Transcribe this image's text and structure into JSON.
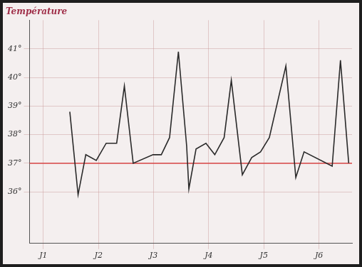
{
  "chart_data": {
    "type": "line",
    "title": "Température",
    "x": [
      1.48,
      1.63,
      1.77,
      1.96,
      2.14,
      2.33,
      2.47,
      2.63,
      2.99,
      3.14,
      3.29,
      3.45,
      3.6,
      3.64,
      3.77,
      3.95,
      4.11,
      4.28,
      4.41,
      4.61,
      4.78,
      4.94,
      5.1,
      5.4,
      5.58,
      5.73,
      6.24,
      6.39,
      6.54
    ],
    "values": [
      38.8,
      35.9,
      37.3,
      37.1,
      37.7,
      37.7,
      39.7,
      37.0,
      37.3,
      37.3,
      37.9,
      40.9,
      37.6,
      36.1,
      37.5,
      37.7,
      37.3,
      37.9,
      39.9,
      36.6,
      37.2,
      37.4,
      37.9,
      40.4,
      36.5,
      37.4,
      36.9,
      40.6,
      37.0
    ],
    "color": "#2a2a2a",
    "xlim": [
      0.75,
      6.6
    ],
    "xticks": [
      {
        "value": 1,
        "label": "J1"
      },
      {
        "value": 2,
        "label": "J2"
      },
      {
        "value": 3,
        "label": "J3"
      },
      {
        "value": 4,
        "label": "J4"
      },
      {
        "value": 5,
        "label": "J5"
      },
      {
        "value": 6,
        "label": "J6"
      }
    ],
    "ylim": [
      34.2,
      42
    ],
    "yticks": [
      {
        "value": 36,
        "label": "36°"
      },
      {
        "value": 37,
        "label": "37°"
      },
      {
        "value": 38,
        "label": "38°"
      },
      {
        "value": 39,
        "label": "39°"
      },
      {
        "value": 40,
        "label": "40°"
      },
      {
        "value": 41,
        "label": "41°"
      }
    ],
    "reference_line": {
      "value": 37,
      "color": "#d94848"
    },
    "grid": true
  }
}
